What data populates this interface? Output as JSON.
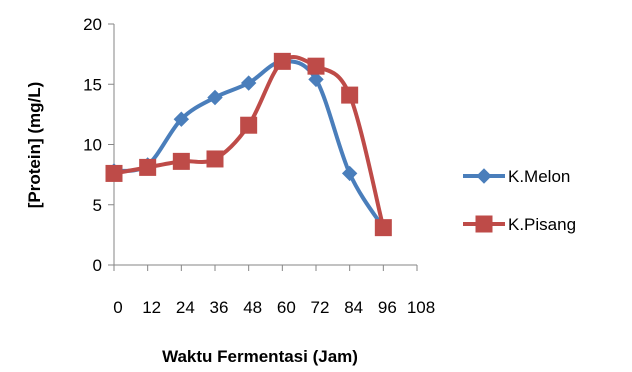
{
  "chart_data": {
    "type": "line",
    "title": "",
    "xlabel": "Waktu Fermentasi (Jam)",
    "ylabel": "[Protein] (mg/L)",
    "x_ticks": [
      "0",
      "12",
      "24",
      "36",
      "48",
      "60",
      "72",
      "84",
      "96",
      "108"
    ],
    "xlim": [
      0,
      108
    ],
    "y_ticks": [
      "0",
      "5",
      "10",
      "15",
      "20"
    ],
    "ylim": [
      0,
      20
    ],
    "grid": false,
    "legend": "right",
    "smooth": true,
    "series": [
      {
        "name": "K.Melon",
        "color": "#4a7ebb",
        "marker": "diamond",
        "x": [
          0,
          12,
          24,
          36,
          48,
          60,
          72,
          84,
          96
        ],
        "values": [
          7.8,
          8.3,
          12.1,
          13.9,
          15.1,
          16.9,
          15.4,
          7.6,
          3.1
        ]
      },
      {
        "name": "K.Pisang",
        "color": "#be4b48",
        "marker": "square",
        "x": [
          0,
          12,
          24,
          36,
          48,
          60,
          72,
          84,
          96
        ],
        "values": [
          7.6,
          8.1,
          8.6,
          8.8,
          11.6,
          16.9,
          16.5,
          14.1,
          3.1
        ]
      }
    ]
  }
}
